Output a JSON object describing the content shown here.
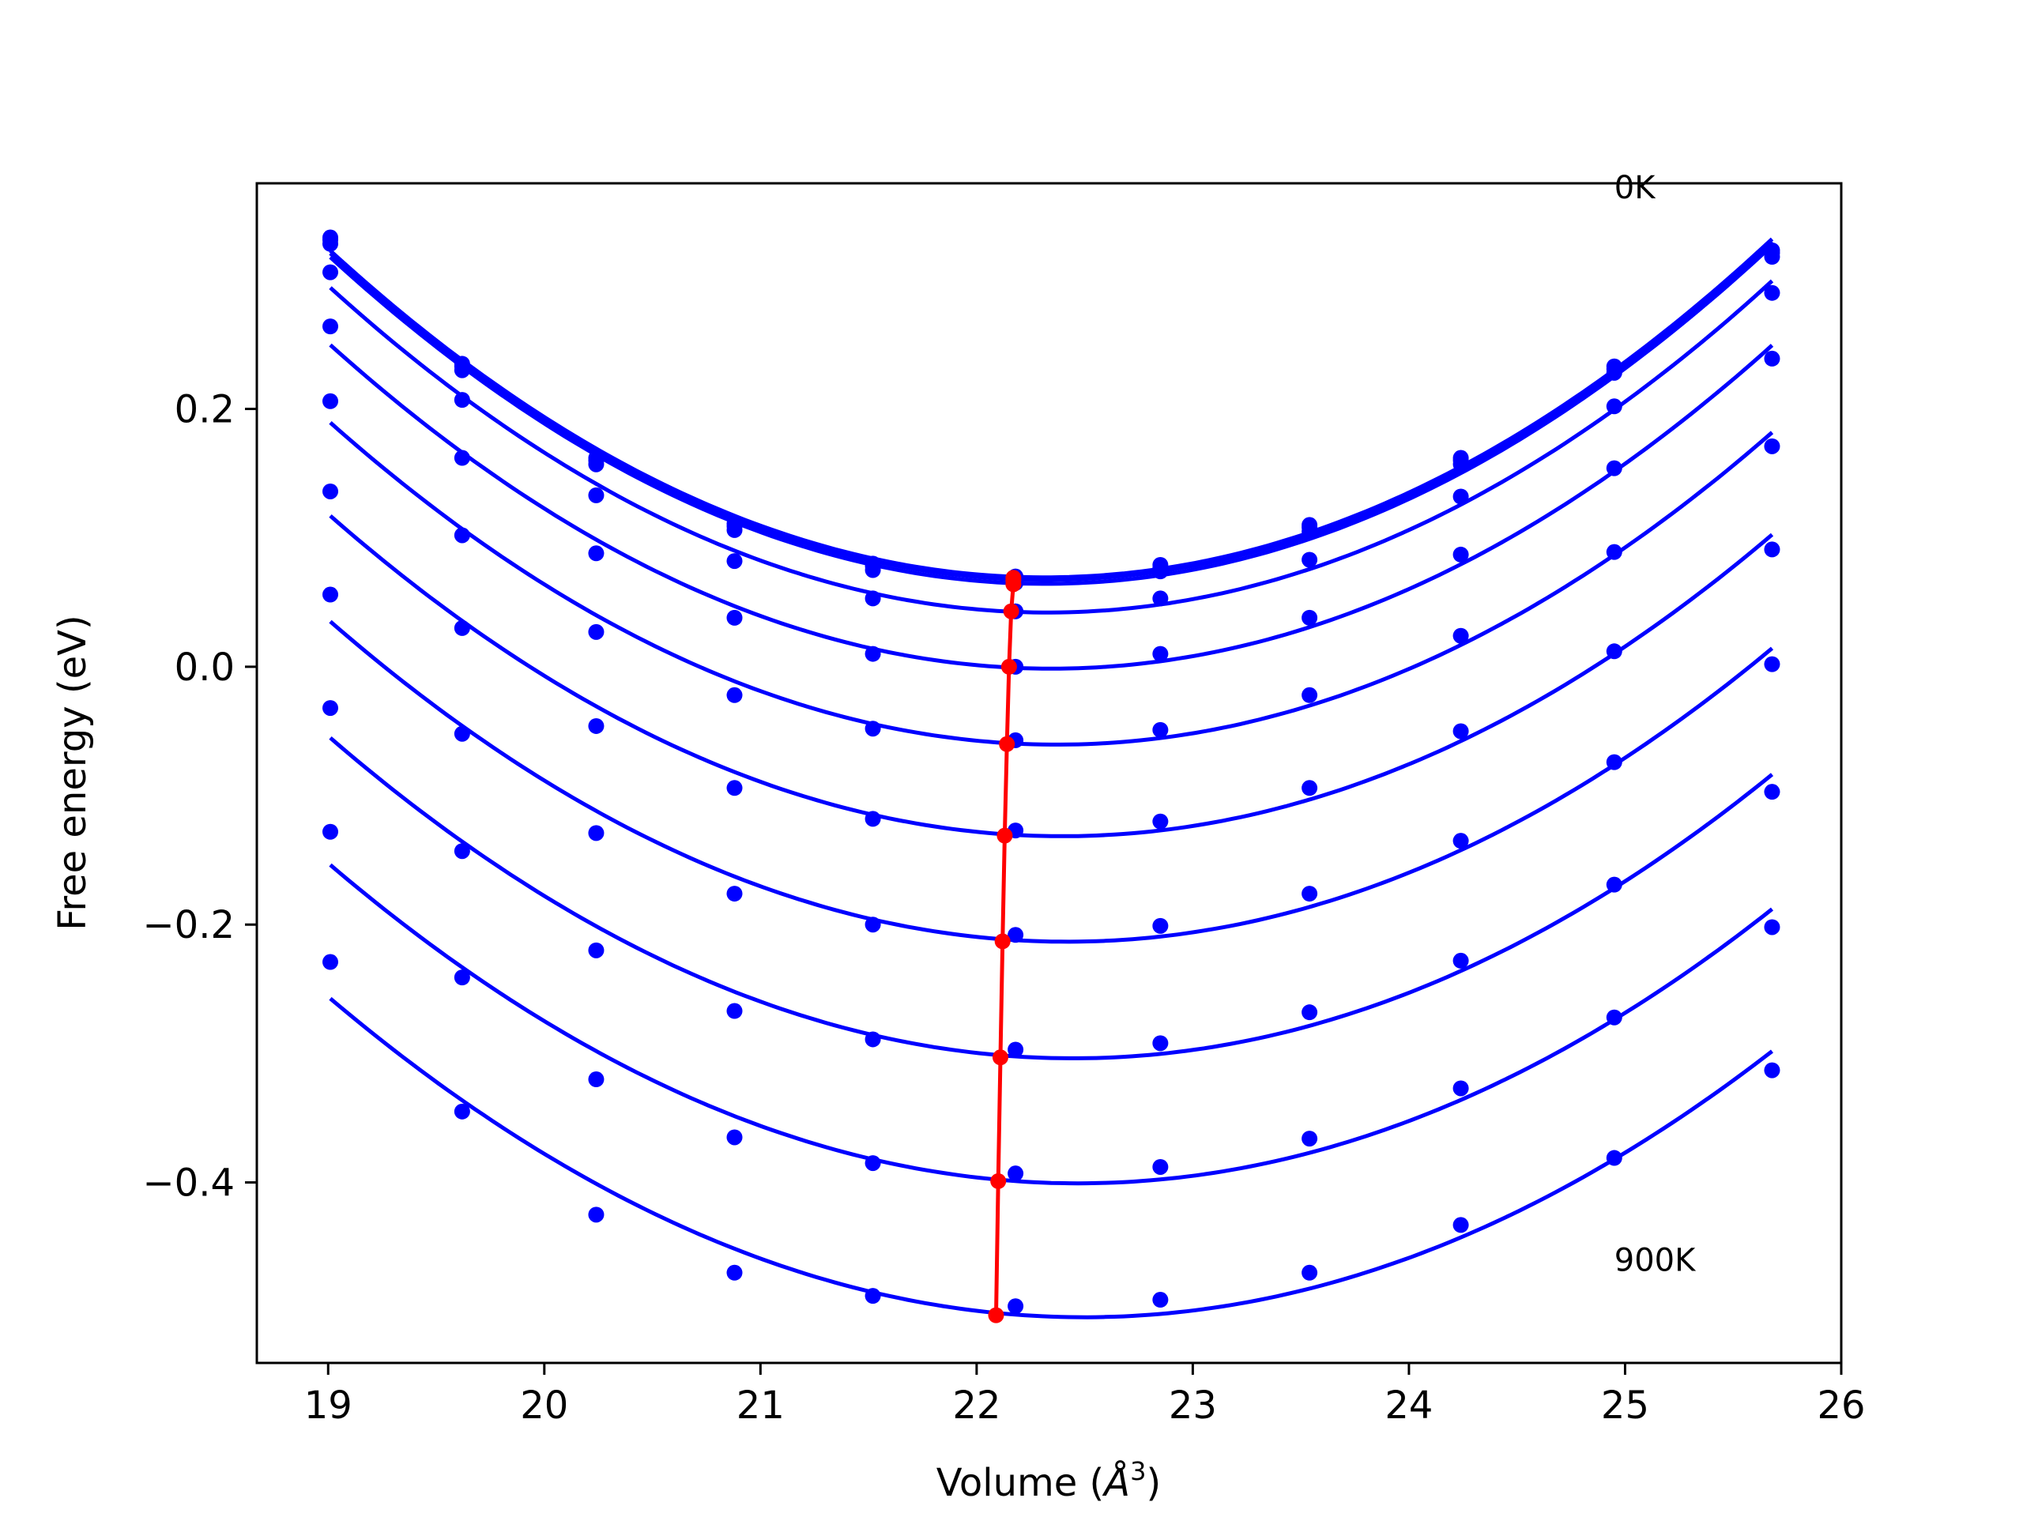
{
  "chart_data": {
    "type": "line",
    "title": "",
    "xlabel": "Volume (",
    "xlabel_sym": "Å",
    "xlabel_sup": "3",
    "xlabel_close": ")",
    "ylabel": "Free energy (eV)",
    "xlim": [
      18.67,
      26.0
    ],
    "ylim": [
      -0.54,
      0.375
    ],
    "xticks": [
      19,
      20,
      21,
      22,
      23,
      24,
      25,
      26
    ],
    "xtick_labels": [
      "19",
      "20",
      "21",
      "22",
      "23",
      "24",
      "25",
      "26"
    ],
    "yticks": [
      0.2,
      0.0,
      -0.2,
      -0.4
    ],
    "ytick_labels": [
      "0.2",
      "0.0",
      "−0.2",
      "−0.4"
    ],
    "grid": false,
    "annotations": [
      {
        "text": "0K",
        "x": 24.95,
        "y": 0.372
      },
      {
        "text": "900K",
        "x": 24.95,
        "y": -0.46
      }
    ],
    "curve_color": "#0000ff",
    "min_line_color": "#ff0000",
    "volumes": [
      19.01,
      19.62,
      20.24,
      20.88,
      21.52,
      22.18,
      22.85,
      23.54,
      24.24,
      24.95,
      25.68
    ],
    "series": [
      {
        "points": [
          0.333,
          0.235,
          0.162,
          0.111,
          0.08,
          0.07,
          0.079,
          0.11,
          0.162,
          0.233,
          0.323
        ],
        "min": [
          22.17,
          0.069
        ]
      },
      {
        "points": [
          0.331,
          0.233,
          0.16,
          0.109,
          0.078,
          0.068,
          0.077,
          0.108,
          0.16,
          0.231,
          0.321
        ],
        "min": [
          22.17,
          0.067
        ]
      },
      {
        "points": [
          0.328,
          0.23,
          0.157,
          0.106,
          0.075,
          0.065,
          0.074,
          0.105,
          0.157,
          0.228,
          0.318
        ],
        "min": [
          22.17,
          0.064
        ]
      },
      {
        "points": [
          0.306,
          0.207,
          0.133,
          0.082,
          0.053,
          0.043,
          0.053,
          0.083,
          0.132,
          0.202,
          0.29
        ],
        "min": [
          22.16,
          0.043
        ]
      },
      {
        "points": [
          0.264,
          0.162,
          0.088,
          0.038,
          0.01,
          0.0,
          0.01,
          0.038,
          0.087,
          0.154,
          0.239
        ],
        "min": [
          22.15,
          0.0
        ]
      },
      {
        "points": [
          0.206,
          0.102,
          0.027,
          -0.022,
          -0.048,
          -0.057,
          -0.049,
          -0.022,
          0.024,
          0.089,
          0.171
        ],
        "min": [
          22.14,
          -0.06
        ]
      },
      {
        "points": [
          0.136,
          0.03,
          -0.046,
          -0.094,
          -0.118,
          -0.127,
          -0.12,
          -0.094,
          -0.05,
          0.012,
          0.091
        ],
        "min": [
          22.13,
          -0.131
        ]
      },
      {
        "points": [
          0.056,
          -0.052,
          -0.129,
          -0.176,
          -0.2,
          -0.208,
          -0.201,
          -0.176,
          -0.135,
          -0.074,
          0.002
        ],
        "min": [
          22.12,
          -0.213
        ]
      },
      {
        "points": [
          -0.032,
          -0.143,
          -0.22,
          -0.267,
          -0.289,
          -0.297,
          -0.292,
          -0.268,
          -0.228,
          -0.169,
          -0.097
        ],
        "min": [
          22.11,
          -0.303
        ]
      },
      {
        "points": [
          -0.128,
          -0.241,
          -0.32,
          -0.365,
          -0.385,
          -0.393,
          -0.388,
          -0.366,
          -0.327,
          -0.272,
          -0.202
        ],
        "min": [
          22.1,
          -0.399
        ]
      },
      {
        "points": [
          -0.229,
          -0.345,
          -0.425,
          -0.47,
          -0.488,
          -0.496,
          -0.491,
          -0.47,
          -0.433,
          -0.381,
          -0.313
        ],
        "min": [
          22.09,
          -0.503
        ]
      }
    ]
  }
}
